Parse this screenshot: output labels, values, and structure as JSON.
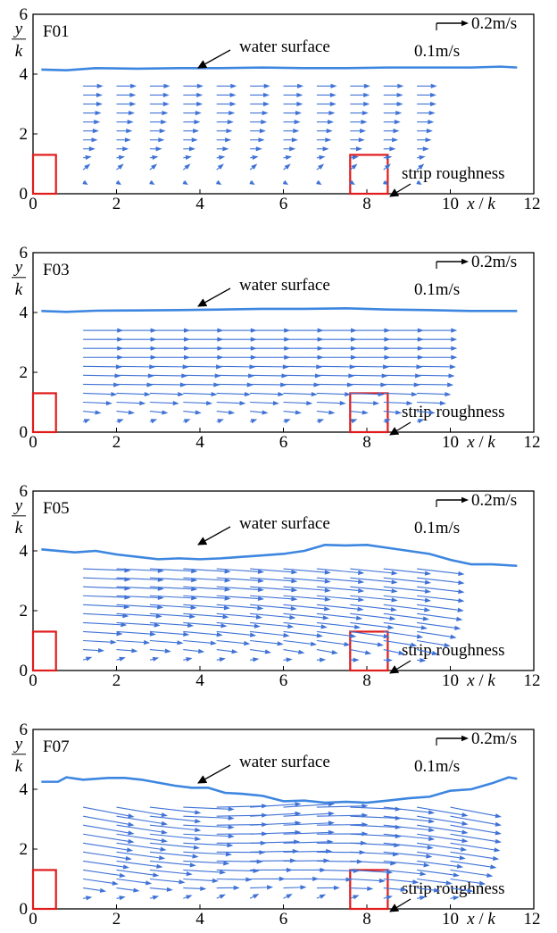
{
  "chart_data": [
    {
      "type": "quiver",
      "panel_label": "F01",
      "xlim": [
        0,
        12
      ],
      "ylim": [
        0,
        6
      ],
      "xticks": [
        0,
        2,
        4,
        6,
        8,
        10,
        12
      ],
      "yticks": [
        0,
        2,
        4,
        6
      ],
      "xlabel": "x / k",
      "ylabel": "y / k",
      "annotation_water": "water surface",
      "annotation_roughness": "strip roughness",
      "scale_label_top": "0.2m/s",
      "scale_label_bottom": "0.1m/s",
      "water_surface": {
        "x": [
          0.2,
          0.8,
          1.5,
          2.5,
          3.5,
          4.5,
          5.5,
          6.5,
          7.5,
          8.5,
          9.5,
          10.5,
          11.2,
          11.6
        ],
        "y": [
          4.15,
          4.13,
          4.2,
          4.18,
          4.2,
          4.2,
          4.22,
          4.2,
          4.2,
          4.22,
          4.22,
          4.22,
          4.25,
          4.22
        ]
      },
      "roughness_blocks": [
        {
          "x0": 0,
          "x1": 0.55,
          "y0": 0,
          "y1": 1.3
        },
        {
          "x0": 7.6,
          "x1": 8.5,
          "y0": 0,
          "y1": 1.3
        }
      ],
      "field": {
        "columns": [
          1.2,
          2.0,
          2.8,
          3.6,
          4.4,
          5.2,
          6.0,
          6.8,
          7.6,
          8.4,
          9.2
        ],
        "rows": [
          0.4,
          0.8,
          1.2,
          1.5,
          1.8,
          2.1,
          2.4,
          2.7,
          3.0,
          3.3,
          3.6
        ],
        "u": [
          0.08,
          0.12,
          0.14,
          0.2,
          0.24,
          0.26,
          0.28,
          0.3,
          0.32,
          0.32,
          0.33
        ],
        "v": [
          -0.05,
          0.1,
          0.02,
          0,
          0,
          0,
          0,
          0,
          0,
          0,
          0
        ],
        "ramp": 0,
        "wave": 0
      }
    },
    {
      "type": "quiver",
      "panel_label": "F03",
      "xlim": [
        0,
        12
      ],
      "ylim": [
        0,
        6
      ],
      "xticks": [
        0,
        2,
        4,
        6,
        8,
        10,
        12
      ],
      "yticks": [
        0,
        2,
        4,
        6
      ],
      "xlabel": "x / k",
      "ylabel": "y / k",
      "annotation_water": "water surface",
      "annotation_roughness": "strip roughness",
      "scale_label_top": "0.2m/s",
      "scale_label_bottom": "0.1m/s",
      "water_surface": {
        "x": [
          0.2,
          0.8,
          1.5,
          2.5,
          3.5,
          4.5,
          5.5,
          6.5,
          7.5,
          8.5,
          9.5,
          10.5,
          11.2,
          11.6
        ],
        "y": [
          4.05,
          4.02,
          4.06,
          4.07,
          4.08,
          4.1,
          4.12,
          4.12,
          4.14,
          4.1,
          4.08,
          4.05,
          4.05,
          4.05
        ]
      },
      "roughness_blocks": [
        {
          "x0": 0,
          "x1": 0.55,
          "y0": 0,
          "y1": 1.3
        },
        {
          "x0": 7.6,
          "x1": 8.5,
          "y0": 0,
          "y1": 1.3
        }
      ],
      "field": {
        "columns": [
          1.2,
          2.0,
          2.8,
          3.6,
          4.4,
          5.2,
          6.0,
          6.8,
          7.6,
          8.4,
          9.2
        ],
        "rows": [
          0.35,
          0.7,
          1.0,
          1.3,
          1.6,
          1.9,
          2.2,
          2.5,
          2.8,
          3.1,
          3.4
        ],
        "u": [
          0.12,
          0.3,
          0.48,
          0.56,
          0.6,
          0.62,
          0.64,
          0.66,
          0.66,
          0.66,
          0.66
        ],
        "v": [
          0.04,
          -0.03,
          -0.02,
          -0.02,
          -0.01,
          -0.01,
          -0.01,
          0,
          0,
          0,
          0
        ],
        "ramp": 0,
        "wave": 0
      }
    },
    {
      "type": "quiver",
      "panel_label": "F05",
      "xlim": [
        0,
        12
      ],
      "ylim": [
        0,
        6
      ],
      "xticks": [
        0,
        2,
        4,
        6,
        8,
        10,
        12
      ],
      "yticks": [
        0,
        2,
        4,
        6
      ],
      "xlabel": "x / k",
      "ylabel": "y / k",
      "annotation_water": "water surface",
      "annotation_roughness": "strip roughness",
      "scale_label_top": "0.2m/s",
      "scale_label_bottom": "0.1m/s",
      "water_surface": {
        "x": [
          0.2,
          1.0,
          1.5,
          2.0,
          2.5,
          3.0,
          3.5,
          4.0,
          4.5,
          5.0,
          5.5,
          6.0,
          6.5,
          7.0,
          7.5,
          8.0,
          8.5,
          9.0,
          9.5,
          10.0,
          10.5,
          11.0,
          11.6
        ],
        "y": [
          4.05,
          3.95,
          4.0,
          3.88,
          3.8,
          3.72,
          3.75,
          3.72,
          3.75,
          3.8,
          3.85,
          3.9,
          4.0,
          4.2,
          4.18,
          4.2,
          4.1,
          4.0,
          3.9,
          3.7,
          3.55,
          3.55,
          3.5
        ]
      },
      "roughness_blocks": [
        {
          "x0": 0,
          "x1": 0.55,
          "y0": 0,
          "y1": 1.3
        },
        {
          "x0": 7.6,
          "x1": 8.5,
          "y0": 0,
          "y1": 1.3
        }
      ],
      "field": {
        "columns": [
          1.2,
          2.0,
          2.8,
          3.6,
          4.4,
          5.2,
          6.0,
          6.8,
          7.6,
          8.4,
          9.2
        ],
        "rows": [
          0.35,
          0.7,
          1.0,
          1.3,
          1.6,
          1.9,
          2.2,
          2.5,
          2.8,
          3.1,
          3.4
        ],
        "u": [
          0.15,
          0.35,
          0.55,
          0.65,
          0.72,
          0.75,
          0.77,
          0.78,
          0.78,
          0.78,
          0.78
        ],
        "v": [
          0.05,
          -0.02,
          -0.03,
          -0.04,
          -0.04,
          -0.04,
          -0.04,
          -0.03,
          -0.03,
          -0.03,
          -0.03
        ],
        "ramp": -0.06,
        "wave": 0
      }
    },
    {
      "type": "quiver",
      "panel_label": "F07",
      "xlim": [
        0,
        12
      ],
      "ylim": [
        0,
        6
      ],
      "xticks": [
        0,
        2,
        4,
        6,
        8,
        10,
        12
      ],
      "yticks": [
        0,
        2,
        4,
        6
      ],
      "xlabel": "x / k",
      "ylabel": "y / k",
      "annotation_water": "water surface",
      "annotation_roughness": "strip roughness",
      "scale_label_top": "0.2m/s",
      "scale_label_bottom": "0.1m/s",
      "water_surface": {
        "x": [
          0.2,
          0.6,
          0.8,
          1.2,
          1.8,
          2.2,
          2.6,
          3.0,
          3.4,
          3.8,
          4.2,
          4.6,
          5.0,
          5.5,
          6.0,
          6.5,
          7.0,
          7.5,
          8.0,
          8.5,
          9.0,
          9.5,
          10.0,
          10.5,
          11.0,
          11.4,
          11.6
        ],
        "y": [
          4.25,
          4.25,
          4.4,
          4.32,
          4.38,
          4.38,
          4.32,
          4.22,
          4.12,
          4.05,
          4.05,
          3.88,
          3.85,
          3.78,
          3.6,
          3.62,
          3.55,
          3.58,
          3.55,
          3.62,
          3.7,
          3.75,
          3.95,
          4.0,
          4.2,
          4.4,
          4.35
        ]
      },
      "roughness_blocks": [
        {
          "x0": 0,
          "x1": 0.55,
          "y0": 0,
          "y1": 1.3
        },
        {
          "x0": 7.6,
          "x1": 8.5,
          "y0": 0,
          "y1": 1.3
        }
      ],
      "field": {
        "columns": [
          1.2,
          2.0,
          2.8,
          3.6,
          4.4,
          5.2,
          6.0,
          6.8,
          7.6,
          8.4,
          9.2,
          10.0
        ],
        "rows": [
          0.35,
          0.7,
          1.0,
          1.3,
          1.6,
          1.9,
          2.2,
          2.5,
          2.8,
          3.1,
          3.4
        ],
        "u": [
          0.15,
          0.38,
          0.58,
          0.7,
          0.76,
          0.8,
          0.82,
          0.84,
          0.84,
          0.84,
          0.84
        ],
        "v": [
          0.05,
          -0.02,
          -0.04,
          -0.05,
          -0.05,
          -0.05,
          -0.05,
          -0.05,
          -0.05,
          -0.05,
          -0.05
        ],
        "ramp": 0,
        "wave": 0.09
      }
    }
  ],
  "colors": {
    "vector": "#3f72d6",
    "water_surface": "#3d86e0",
    "roughness": "#e11b1b",
    "axis": "#000000"
  }
}
